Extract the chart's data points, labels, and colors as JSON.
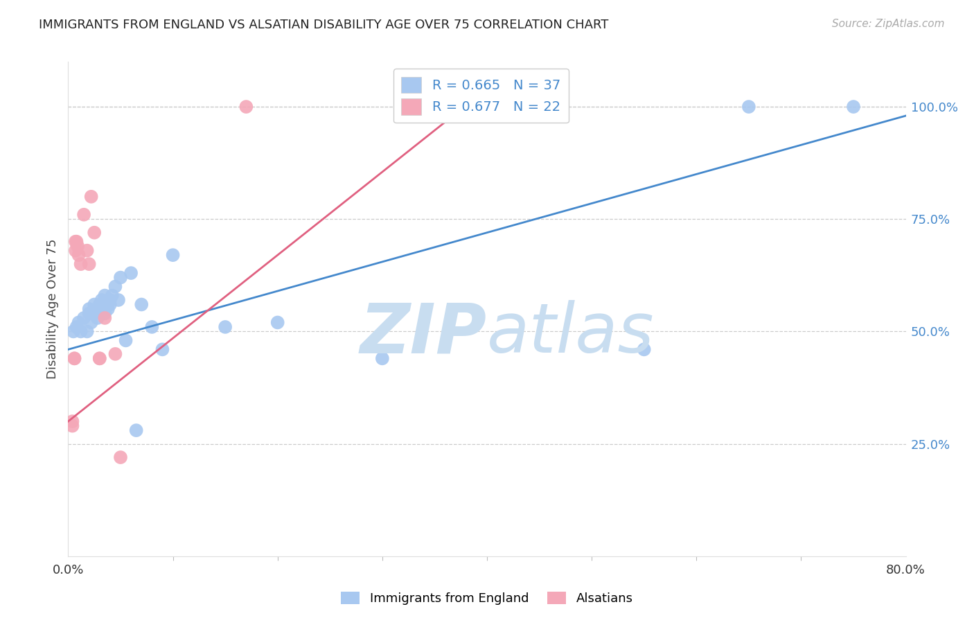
{
  "title": "IMMIGRANTS FROM ENGLAND VS ALSATIAN DISABILITY AGE OVER 75 CORRELATION CHART",
  "source": "Source: ZipAtlas.com",
  "ylabel": "Disability Age Over 75",
  "legend_label1": "Immigrants from England",
  "legend_label2": "Alsatians",
  "r1": "0.665",
  "n1": "37",
  "r2": "0.677",
  "n2": "22",
  "blue_color": "#a8c8f0",
  "pink_color": "#f4a8b8",
  "blue_line_color": "#4488cc",
  "pink_line_color": "#e06080",
  "title_color": "#222222",
  "source_color": "#aaaaaa",
  "tick_color_right": "#4488cc",
  "grid_color": "#cccccc",
  "watermark_zip_color": "#c8ddf0",
  "watermark_atlas_color": "#c8ddf0",
  "xlim": [
    0.0,
    0.8
  ],
  "ylim": [
    0.0,
    1.1
  ],
  "y_ticks": [
    0.25,
    0.5,
    0.75,
    1.0
  ],
  "y_tick_labels": [
    "25.0%",
    "50.0%",
    "75.0%",
    "100.0%"
  ],
  "blue_scatter_x": [
    0.005,
    0.008,
    0.01,
    0.012,
    0.015,
    0.018,
    0.02,
    0.02,
    0.022,
    0.025,
    0.025,
    0.028,
    0.03,
    0.03,
    0.032,
    0.035,
    0.035,
    0.038,
    0.04,
    0.04,
    0.042,
    0.045,
    0.048,
    0.05,
    0.055,
    0.06,
    0.065,
    0.07,
    0.08,
    0.09,
    0.1,
    0.15,
    0.2,
    0.3,
    0.55,
    0.65,
    0.75
  ],
  "blue_scatter_y": [
    0.5,
    0.51,
    0.52,
    0.5,
    0.53,
    0.5,
    0.54,
    0.55,
    0.52,
    0.54,
    0.56,
    0.53,
    0.55,
    0.56,
    0.57,
    0.54,
    0.58,
    0.55,
    0.56,
    0.57,
    0.58,
    0.6,
    0.57,
    0.62,
    0.48,
    0.63,
    0.28,
    0.56,
    0.51,
    0.46,
    0.67,
    0.51,
    0.52,
    0.44,
    0.46,
    1.0,
    1.0
  ],
  "pink_scatter_x": [
    0.004,
    0.004,
    0.006,
    0.006,
    0.007,
    0.007,
    0.008,
    0.009,
    0.01,
    0.012,
    0.015,
    0.018,
    0.02,
    0.022,
    0.025,
    0.03,
    0.03,
    0.035,
    0.045,
    0.05,
    0.17,
    0.4
  ],
  "pink_scatter_y": [
    0.29,
    0.3,
    0.44,
    0.44,
    0.7,
    0.68,
    0.7,
    0.69,
    0.67,
    0.65,
    0.76,
    0.68,
    0.65,
    0.8,
    0.72,
    0.44,
    0.44,
    0.53,
    0.45,
    0.22,
    1.0,
    1.0
  ],
  "blue_line_x": [
    0.0,
    0.8
  ],
  "blue_line_y": [
    0.46,
    0.98
  ],
  "pink_line_x": [
    0.0,
    0.4
  ],
  "pink_line_y": [
    0.3,
    1.04
  ]
}
